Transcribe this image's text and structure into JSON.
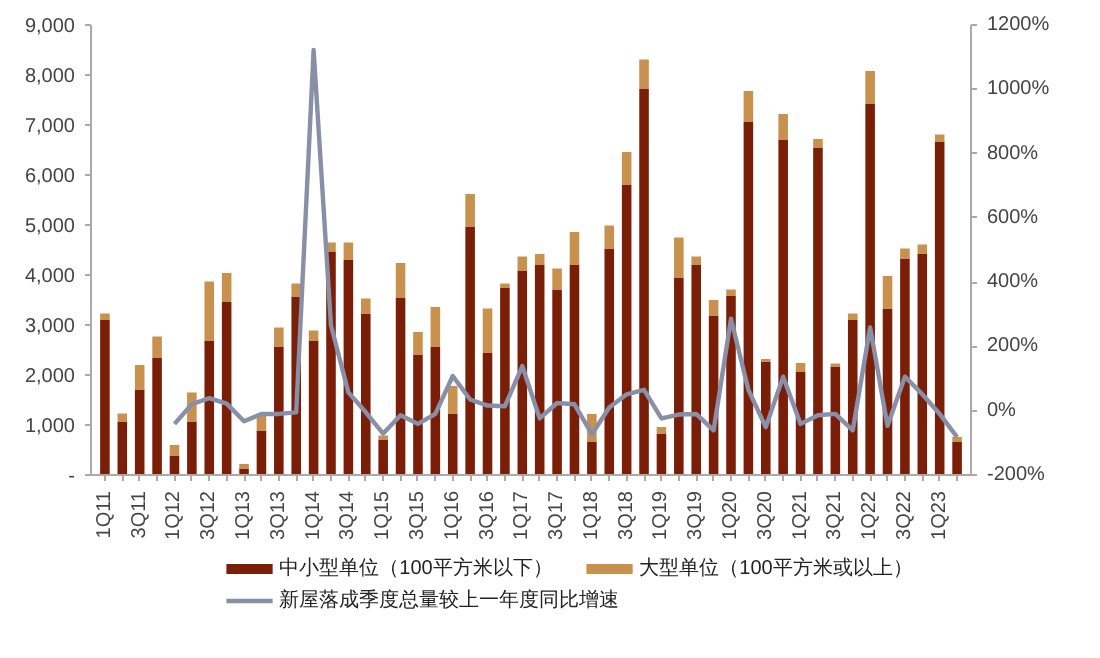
{
  "chart_data": {
    "type": "bar",
    "stacked": true,
    "categories": [
      "1Q11",
      null,
      "3Q11",
      null,
      "1Q12",
      null,
      "3Q12",
      null,
      "1Q13",
      null,
      "3Q13",
      null,
      "1Q14",
      null,
      "3Q14",
      null,
      "1Q15",
      null,
      "3Q15",
      null,
      "1Q16",
      null,
      "3Q16",
      null,
      "1Q17",
      null,
      "3Q17",
      null,
      "1Q18",
      null,
      "3Q18",
      null,
      "1Q19",
      null,
      "3Q19",
      null,
      "1Q20",
      null,
      "3Q20",
      null,
      "1Q21",
      null,
      "3Q21",
      null,
      "1Q22",
      null,
      "3Q22",
      null,
      "1Q23",
      null
    ],
    "series": [
      {
        "name": "中小型单位（100平方米以下）",
        "color": "#7a1e08",
        "values": [
          3100,
          1060,
          1710,
          2350,
          390,
          1060,
          2690,
          3460,
          130,
          890,
          2570,
          3570,
          2690,
          4460,
          4300,
          3220,
          700,
          3540,
          2400,
          2570,
          1220,
          4960,
          2440,
          3740,
          4080,
          4200,
          3710,
          4210,
          670,
          4530,
          5810,
          7720,
          830,
          3940,
          4200,
          3190,
          3580,
          7060,
          2260,
          6710,
          2060,
          6540,
          2170,
          3100,
          7430,
          3330,
          4330,
          4420,
          6670,
          660
        ]
      },
      {
        "name": "大型单位（100平方米或以上）",
        "color": "#c8914e",
        "values": [
          130,
          170,
          490,
          420,
          210,
          590,
          1180,
          580,
          90,
          340,
          380,
          260,
          200,
          190,
          350,
          310,
          90,
          700,
          460,
          790,
          560,
          660,
          890,
          90,
          290,
          220,
          420,
          650,
          550,
          460,
          650,
          590,
          130,
          810,
          170,
          310,
          130,
          620,
          60,
          510,
          180,
          180,
          60,
          130,
          650,
          650,
          200,
          190,
          140,
          100
        ]
      },
      {
        "name": "新屋落成季度总量较上一年度同比增速",
        "type": "line",
        "axis": "y2",
        "color": "#8a8fa8",
        "values": [
          null,
          null,
          null,
          null,
          -41,
          20,
          39,
          22,
          -33,
          -10,
          -10,
          -5,
          1122,
          265,
          57,
          -5,
          -71,
          -14,
          -41,
          -10,
          108,
          35,
          16,
          14,
          139,
          -24,
          24,
          20,
          -73,
          10,
          51,
          65,
          -24,
          -12,
          -10,
          -61,
          286,
          65,
          -51,
          106,
          -41,
          -14,
          -10,
          -61,
          259,
          -47,
          106,
          51,
          -10,
          -82
        ]
      }
    ],
    "ylim": [
      0,
      9000
    ],
    "yticks": [
      {
        "value": 0,
        "label": "-"
      },
      {
        "value": 1000,
        "label": "1,000"
      },
      {
        "value": 2000,
        "label": "2,000"
      },
      {
        "value": 3000,
        "label": "3,000"
      },
      {
        "value": 4000,
        "label": "4,000"
      },
      {
        "value": 5000,
        "label": "5,000"
      },
      {
        "value": 6000,
        "label": "6,000"
      },
      {
        "value": 7000,
        "label": "7,000"
      },
      {
        "value": 8000,
        "label": "8,000"
      },
      {
        "value": 9000,
        "label": "9,000"
      }
    ],
    "y2lim": [
      -200,
      1200
    ],
    "y2ticks": [
      {
        "value": -200,
        "label": "-200%"
      },
      {
        "value": 0,
        "label": "0%"
      },
      {
        "value": 200,
        "label": "200%"
      },
      {
        "value": 400,
        "label": "400%"
      },
      {
        "value": 600,
        "label": "600%"
      },
      {
        "value": 800,
        "label": "800%"
      },
      {
        "value": 1000,
        "label": "1000%"
      },
      {
        "value": 1200,
        "label": "1200%"
      }
    ],
    "grid": false,
    "legend": "bottom"
  }
}
